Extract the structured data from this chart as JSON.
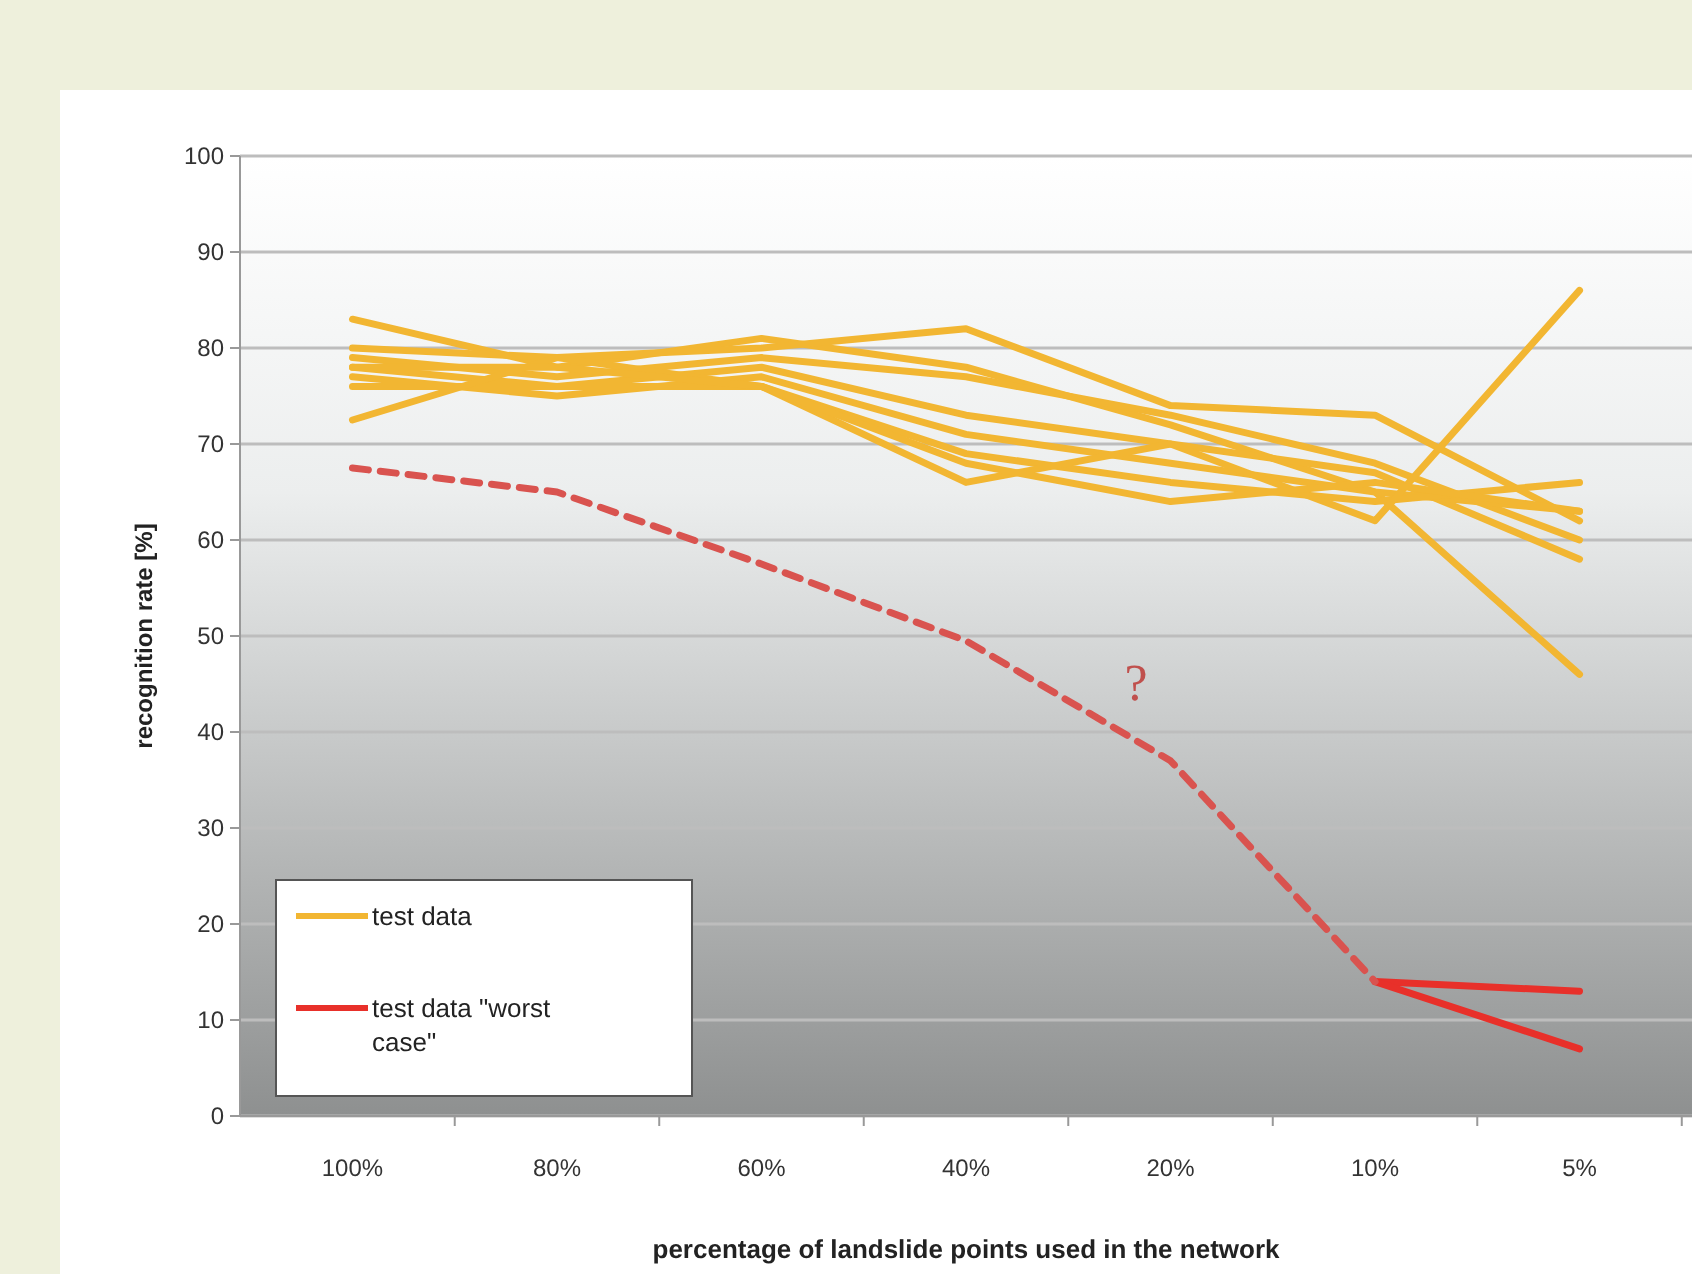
{
  "chart_data": {
    "type": "line",
    "xlabel": "percentage of landslide points used in the network",
    "ylabel": "recognition rate [%]",
    "categories": [
      "100%",
      "80%",
      "60%",
      "40%",
      "20%",
      "10%",
      "5%"
    ],
    "ylim": [
      0,
      100
    ],
    "yticks": [
      0,
      10,
      20,
      30,
      40,
      50,
      60,
      70,
      80,
      90,
      100
    ],
    "grid": "y",
    "legend": "bottom left",
    "marker": "none",
    "series": [
      {
        "name": "test data",
        "color": "#f2b632",
        "values": [
          83,
          78,
          81,
          78,
          72,
          65,
          46
        ]
      },
      {
        "color": "#f2b632",
        "values": [
          80,
          79,
          80,
          82,
          74,
          73,
          62
        ]
      },
      {
        "color": "#f2b632",
        "values": [
          79,
          77,
          79,
          77,
          73,
          68,
          60
        ]
      },
      {
        "color": "#f2b632",
        "values": [
          78,
          76,
          78,
          73,
          70,
          67,
          58
        ]
      },
      {
        "color": "#f2b632",
        "values": [
          77,
          75,
          77,
          71,
          68,
          65,
          63
        ]
      },
      {
        "color": "#f2b632",
        "values": [
          76,
          76,
          76,
          69,
          66,
          64,
          66
        ]
      },
      {
        "color": "#f2b632",
        "values": [
          72.5,
          79,
          76,
          66,
          70,
          62,
          86
        ]
      },
      {
        "color": "#f2b632",
        "values": [
          78,
          78,
          76,
          68,
          64,
          66,
          63
        ]
      },
      {
        "name": "test data \"worst case\"",
        "color": "#e8302a",
        "values": [
          null,
          null,
          null,
          null,
          null,
          14,
          13
        ]
      },
      {
        "color": "#e8302a",
        "values": [
          null,
          null,
          null,
          null,
          null,
          14,
          7
        ]
      },
      {
        "color": "#d9534f",
        "line_style": "dashed",
        "values": [
          67.5,
          65,
          57.5,
          49.5,
          37,
          14,
          null
        ]
      }
    ],
    "annotations": [
      "?"
    ]
  }
}
